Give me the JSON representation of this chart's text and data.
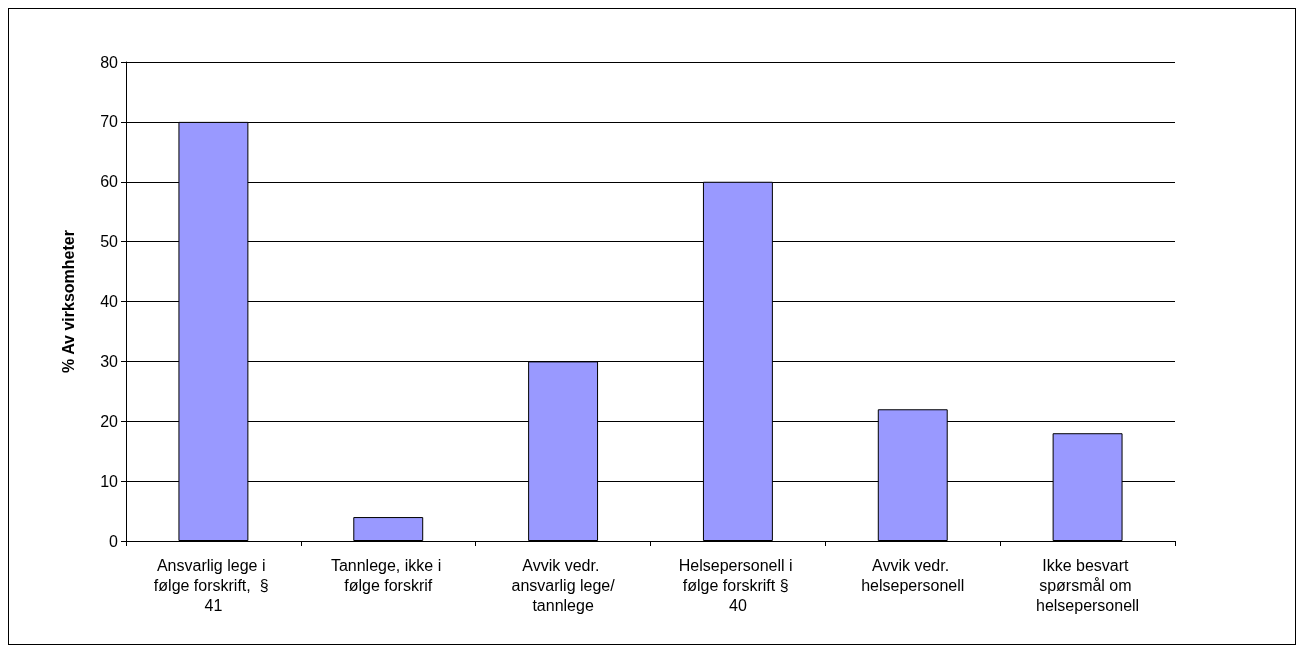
{
  "chart_data": {
    "type": "bar",
    "ylabel": "% Av virksomheter",
    "categories": [
      "Ansvarlig lege i følge forskrift,  § 41",
      "Tannlege, ikke i følge forskrif",
      "Avvik vedr. ansvarlig lege/tannlege",
      "Helsepersonell i følge forskrift § 40",
      "Avvik vedr. helsepersonell",
      "Ikke besvart spørsmål om helsepersonell"
    ],
    "values": [
      70,
      4,
      30,
      60,
      22,
      18
    ],
    "color": "#9999ff",
    "ylim": [
      0,
      80
    ],
    "yticks": [
      0,
      10,
      20,
      30,
      40,
      50,
      60,
      70,
      80
    ],
    "grid": "y"
  }
}
